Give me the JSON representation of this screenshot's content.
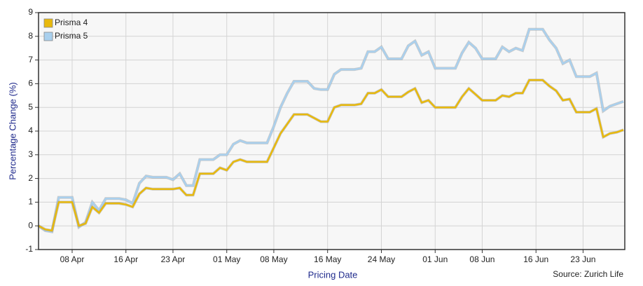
{
  "chart_data": {
    "type": "line",
    "x_label": "Pricing Date",
    "y_label": "Percentage Change (%)",
    "source": "Source: Zurich Life",
    "categories": [
      null,
      null,
      null,
      null,
      null,
      "08 Apr",
      null,
      null,
      null,
      null,
      null,
      null,
      null,
      "16 Apr",
      null,
      null,
      null,
      null,
      null,
      null,
      "23 Apr",
      null,
      null,
      null,
      null,
      null,
      null,
      null,
      "01 May",
      null,
      null,
      null,
      null,
      null,
      null,
      "08 May",
      null,
      null,
      null,
      null,
      null,
      null,
      null,
      "16 May",
      null,
      null,
      null,
      null,
      null,
      null,
      null,
      "24 May",
      null,
      null,
      null,
      null,
      null,
      null,
      null,
      "01 Jun",
      null,
      null,
      null,
      null,
      null,
      null,
      "08 Jun",
      null,
      null,
      null,
      null,
      null,
      null,
      null,
      "16 Jun",
      null,
      null,
      null,
      null,
      null,
      null,
      "23 Jun",
      null,
      null,
      null,
      null,
      null,
      null
    ],
    "series": [
      {
        "name": "Prisma 4",
        "color": "#e8b90c",
        "values": [
          0,
          -0.15,
          -0.2,
          1.0,
          1.0,
          1.0,
          0.0,
          0.1,
          0.8,
          0.55,
          0.95,
          0.95,
          0.95,
          0.9,
          0.8,
          1.35,
          1.6,
          1.55,
          1.55,
          1.55,
          1.55,
          1.6,
          1.3,
          1.3,
          2.2,
          2.2,
          2.2,
          2.45,
          2.35,
          2.7,
          2.8,
          2.7,
          2.7,
          2.7,
          2.7,
          3.3,
          3.9,
          4.3,
          4.7,
          4.7,
          4.7,
          4.55,
          4.4,
          4.4,
          5.0,
          5.1,
          5.1,
          5.1,
          5.15,
          5.6,
          5.6,
          5.75,
          5.45,
          5.45,
          5.45,
          5.65,
          5.8,
          5.2,
          5.3,
          5.0,
          5.0,
          5.0,
          5.0,
          5.45,
          5.8,
          5.55,
          5.3,
          5.3,
          5.3,
          5.5,
          5.45,
          5.6,
          5.6,
          6.15,
          6.15,
          6.15,
          5.9,
          5.7,
          5.3,
          5.35,
          4.8,
          4.8,
          4.8,
          4.95,
          3.75,
          3.9,
          3.95,
          4.05
        ]
      },
      {
        "name": "Prisma 5",
        "color": "#a9d0ee",
        "values": [
          0,
          -0.2,
          -0.25,
          1.2,
          1.2,
          1.2,
          -0.05,
          0.15,
          1.0,
          0.65,
          1.15,
          1.15,
          1.15,
          1.1,
          0.95,
          1.8,
          2.1,
          2.05,
          2.05,
          2.05,
          1.95,
          2.2,
          1.7,
          1.7,
          2.8,
          2.8,
          2.8,
          3.0,
          3.0,
          3.45,
          3.6,
          3.5,
          3.5,
          3.5,
          3.5,
          4.2,
          5.0,
          5.6,
          6.1,
          6.1,
          6.1,
          5.8,
          5.75,
          5.75,
          6.4,
          6.6,
          6.6,
          6.6,
          6.65,
          7.35,
          7.35,
          7.55,
          7.05,
          7.05,
          7.05,
          7.6,
          7.8,
          7.2,
          7.35,
          6.65,
          6.65,
          6.65,
          6.65,
          7.3,
          7.75,
          7.5,
          7.05,
          7.05,
          7.05,
          7.55,
          7.35,
          7.5,
          7.4,
          8.3,
          8.3,
          8.3,
          7.85,
          7.5,
          6.85,
          7.0,
          6.3,
          6.3,
          6.3,
          6.45,
          4.85,
          5.05,
          5.15,
          5.25
        ]
      }
    ],
    "ylim": [
      -1,
      9
    ],
    "yticks": [
      -1,
      0,
      1,
      2,
      3,
      4,
      5,
      6,
      7,
      8,
      9
    ],
    "grid": true,
    "legend": "top-left"
  }
}
